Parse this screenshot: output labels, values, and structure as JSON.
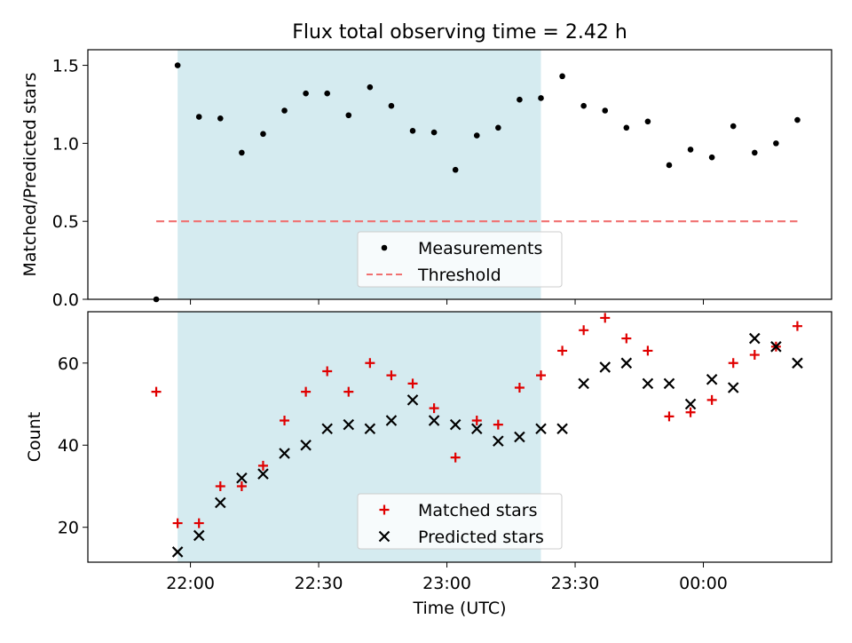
{
  "title": "Flux total observing time = 2.42 h",
  "colors": {
    "shade": "#d5ebf0",
    "measurement": "#000000",
    "threshold": "#f07070",
    "matched": "#e00000",
    "predicted": "#000000"
  },
  "chart_data": [
    {
      "type": "scatter",
      "ylabel": "Matched/Predicted stars",
      "ylim": [
        0,
        1.6
      ],
      "y_ticks": [
        "0.0",
        "0.5",
        "1.0",
        "1.5"
      ],
      "y_tick_values": [
        0,
        0.5,
        1.0,
        1.5
      ],
      "observing_window": [
        "21:57",
        "23:22"
      ],
      "legend_position": "lower center",
      "series": [
        {
          "name": "Measurements",
          "marker": "dot",
          "x": [
            "21:52",
            "21:57",
            "22:02",
            "22:07",
            "22:12",
            "22:17",
            "22:22",
            "22:27",
            "22:32",
            "22:37",
            "22:42",
            "22:47",
            "22:52",
            "22:57",
            "23:02",
            "23:07",
            "23:12",
            "23:17",
            "23:22",
            "23:27",
            "23:32",
            "23:37",
            "23:42",
            "23:47",
            "23:52",
            "23:57",
            "00:02",
            "00:07",
            "00:12",
            "00:17",
            "00:22"
          ],
          "y": [
            0.0,
            1.5,
            1.17,
            1.16,
            0.94,
            1.06,
            1.21,
            1.32,
            1.32,
            1.18,
            1.36,
            1.24,
            1.08,
            1.07,
            0.83,
            1.05,
            1.1,
            1.28,
            1.29,
            1.43,
            1.24,
            1.21,
            1.1,
            1.14,
            0.86,
            0.96,
            0.91,
            1.11,
            0.94,
            1.0,
            1.15
          ]
        },
        {
          "name": "Threshold",
          "style": "dashed",
          "x": [
            "21:52",
            "00:22"
          ],
          "y": [
            0.5,
            0.5
          ]
        }
      ]
    },
    {
      "type": "scatter",
      "xlabel": "Time (UTC)",
      "ylabel": "Count",
      "ylim": [
        11.5,
        72.5
      ],
      "y_ticks": [
        "20",
        "40",
        "60"
      ],
      "y_tick_values": [
        20,
        40,
        60
      ],
      "x_ticks": [
        "22:00",
        "22:30",
        "23:00",
        "23:30",
        "00:00"
      ],
      "legend_position": "lower center",
      "series": [
        {
          "name": "Matched stars",
          "marker": "plus",
          "x": [
            "21:52",
            "21:57",
            "22:02",
            "22:07",
            "22:12",
            "22:17",
            "22:22",
            "22:27",
            "22:32",
            "22:37",
            "22:42",
            "22:47",
            "22:52",
            "22:57",
            "23:02",
            "23:07",
            "23:12",
            "23:17",
            "23:22",
            "23:27",
            "23:32",
            "23:37",
            "23:42",
            "23:47",
            "23:52",
            "23:57",
            "00:02",
            "00:07",
            "00:12",
            "00:17",
            "00:22"
          ],
          "y": [
            53,
            21,
            21,
            30,
            30,
            35,
            46,
            53,
            58,
            53,
            60,
            57,
            55,
            49,
            37,
            46,
            45,
            54,
            57,
            63,
            68,
            71,
            66,
            63,
            47,
            48,
            51,
            60,
            62,
            64,
            69
          ]
        },
        {
          "name": "Predicted stars",
          "marker": "x",
          "x": [
            "21:57",
            "22:02",
            "22:07",
            "22:12",
            "22:17",
            "22:22",
            "22:27",
            "22:32",
            "22:37",
            "22:42",
            "22:47",
            "22:52",
            "22:57",
            "23:02",
            "23:07",
            "23:12",
            "23:17",
            "23:22",
            "23:27",
            "23:32",
            "23:37",
            "23:42",
            "23:47",
            "23:52",
            "23:57",
            "00:02",
            "00:07",
            "00:12",
            "00:17",
            "00:22"
          ],
          "y": [
            14,
            18,
            26,
            32,
            33,
            38,
            40,
            44,
            45,
            44,
            46,
            51,
            46,
            45,
            44,
            41,
            42,
            44,
            44,
            55,
            59,
            60,
            55,
            55,
            50,
            56,
            54,
            66,
            64,
            60
          ]
        }
      ]
    }
  ]
}
